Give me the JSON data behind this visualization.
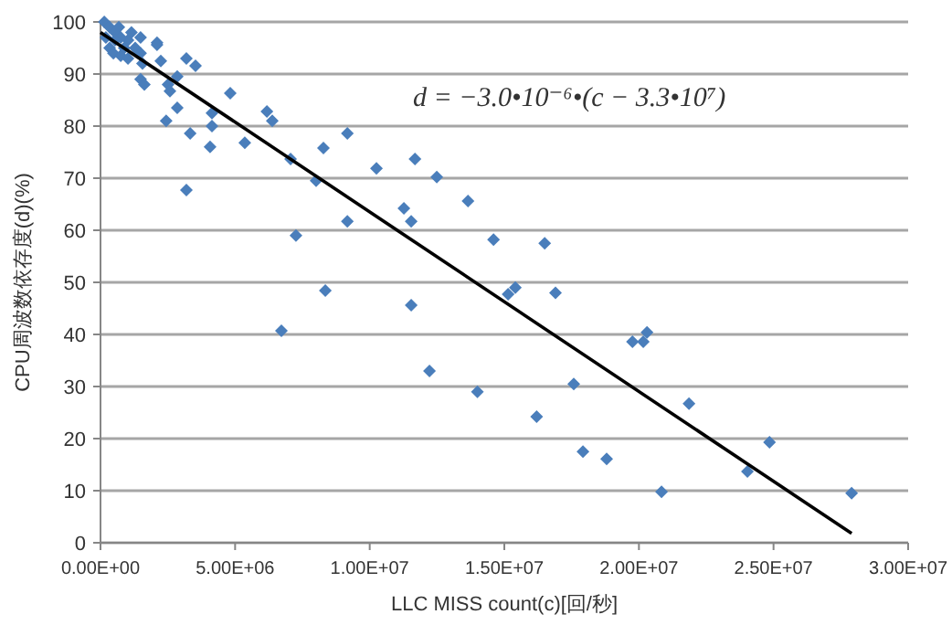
{
  "chart_data": {
    "type": "scatter",
    "xlabel": "LLC MISS count(c)[回/秒]",
    "ylabel": "CPU周波数依存度(d)(%)",
    "annotations": [
      "d = −3.0•10⁻⁶•(c − 3.3•10⁷)"
    ],
    "xlim": [
      0,
      30000000
    ],
    "xticks": [
      {
        "value": 0,
        "label": "0.00E+00"
      },
      {
        "value": 5000000,
        "label": "5.00E+06"
      },
      {
        "value": 10000000,
        "label": "1.00E+07"
      },
      {
        "value": 15000000,
        "label": "1.50E+07"
      },
      {
        "value": 20000000,
        "label": "2.00E+07"
      },
      {
        "value": 25000000,
        "label": "2.50E+07"
      },
      {
        "value": 30000000,
        "label": "3.00E+07"
      }
    ],
    "ylim": [
      0,
      100
    ],
    "yticks": [
      0,
      10,
      20,
      30,
      40,
      50,
      60,
      70,
      80,
      90,
      100
    ],
    "grid": "y",
    "series": [
      {
        "color": "#4a7ebb",
        "marker": "diamond",
        "x": [
          140000,
          340000,
          540000,
          680000,
          200000,
          340000,
          480000,
          750000,
          880000,
          1020000,
          1150000,
          750000,
          1290000,
          1490000,
          1560000,
          1020000,
          540000,
          1490000,
          2100000,
          2100000,
          2240000,
          1490000,
          1630000,
          2510000,
          2580000,
          2850000,
          2850000,
          2440000,
          3190000,
          3530000,
          3330000,
          3190000,
          4140000,
          4140000,
          4070000,
          4820000,
          5360000,
          6180000,
          6380000,
          7060000,
          7260000,
          8010000,
          8280000,
          8350000,
          9170000,
          9170000,
          10250000,
          11270000,
          11540000,
          11680000,
          11540000,
          12490000,
          13650000,
          6720000,
          12220000,
          14600000,
          16500000,
          15140000,
          15410000,
          16900000,
          14000000,
          16200000,
          17580000,
          17920000,
          18800000,
          19760000,
          20160000,
          20300000,
          21860000,
          20840000,
          24030000,
          24850000,
          27900000
        ],
        "values": [
          100,
          99,
          98,
          99,
          97,
          95,
          94,
          93.5,
          95,
          96.5,
          98,
          97,
          95,
          94,
          92,
          93,
          96.5,
          97,
          96,
          95.6,
          92.5,
          89,
          88,
          88,
          86.7,
          89.5,
          83.5,
          81,
          93,
          91.6,
          78.6,
          67.7,
          82.5,
          80,
          76,
          86.3,
          76.8,
          82.8,
          81,
          73.7,
          59,
          69.5,
          75.8,
          48.4,
          78.6,
          61.7,
          71.9,
          64.2,
          61.7,
          73.7,
          45.6,
          70.2,
          65.6,
          40.7,
          33,
          58.2,
          57.5,
          47.7,
          49,
          48,
          29,
          24.2,
          30.5,
          17.5,
          16.1,
          38.6,
          38.6,
          40.4,
          26.7,
          9.8,
          13.7,
          19.3,
          9.5
        ]
      },
      {
        "type": "line",
        "marker": "none",
        "color": "#000000",
        "x": [
          0,
          27900000
        ],
        "values": [
          98,
          1.8
        ]
      }
    ]
  }
}
